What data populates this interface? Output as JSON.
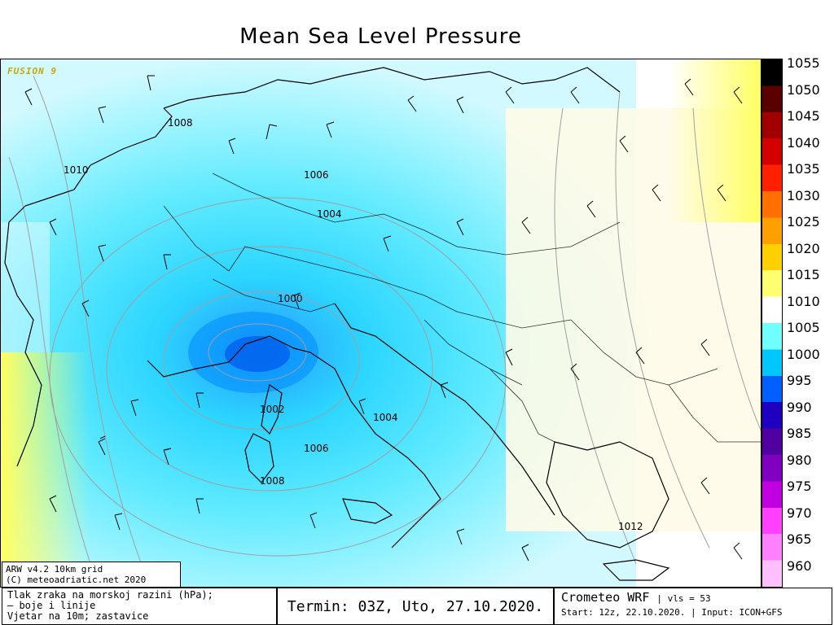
{
  "title": "Mean Sea Level Pressure",
  "model_tag": "FUSION 9",
  "credit": [
    "ARW v4.2 10km grid",
    "(C) meteoadriatic.net 2020"
  ],
  "legend_lines": [
    "Tlak zraka na morskoj razini (hPa);",
    "— boje i linije",
    "Vjetar na 10m; zastavice"
  ],
  "termin": "Termin: 03Z, Uto, 27.10.2020.",
  "brand": "Crometeo WRF",
  "vls": "vls = 53",
  "start_info": "Start: 12z, 22.10.2020.",
  "input_info": "Input: ICON+GFS",
  "colorbar": {
    "labels": [
      "1055",
      "1050",
      "1045",
      "1040",
      "1035",
      "1030",
      "1025",
      "1020",
      "1015",
      "1010",
      "1005",
      "1000",
      "995",
      "990",
      "985",
      "980",
      "975",
      "970",
      "965",
      "960"
    ],
    "colors": [
      "#000000",
      "#5a0000",
      "#a00000",
      "#d40000",
      "#ff2000",
      "#ff7000",
      "#ffa000",
      "#ffd000",
      "#ffff70",
      "#ffffff",
      "#70ffff",
      "#00c8ff",
      "#0060ff",
      "#2000c0",
      "#5000a0",
      "#8000c0",
      "#c000e0",
      "#ff40ff",
      "#ff80ff",
      "#ffc0ff"
    ]
  },
  "isobar_labels": [
    {
      "text": "1008"
    },
    {
      "text": "1010"
    },
    {
      "text": "1006"
    },
    {
      "text": "1004"
    },
    {
      "text": "1000"
    },
    {
      "text": "1002"
    },
    {
      "text": "1004"
    },
    {
      "text": "1006"
    },
    {
      "text": "1008"
    },
    {
      "text": "1012"
    }
  ]
}
